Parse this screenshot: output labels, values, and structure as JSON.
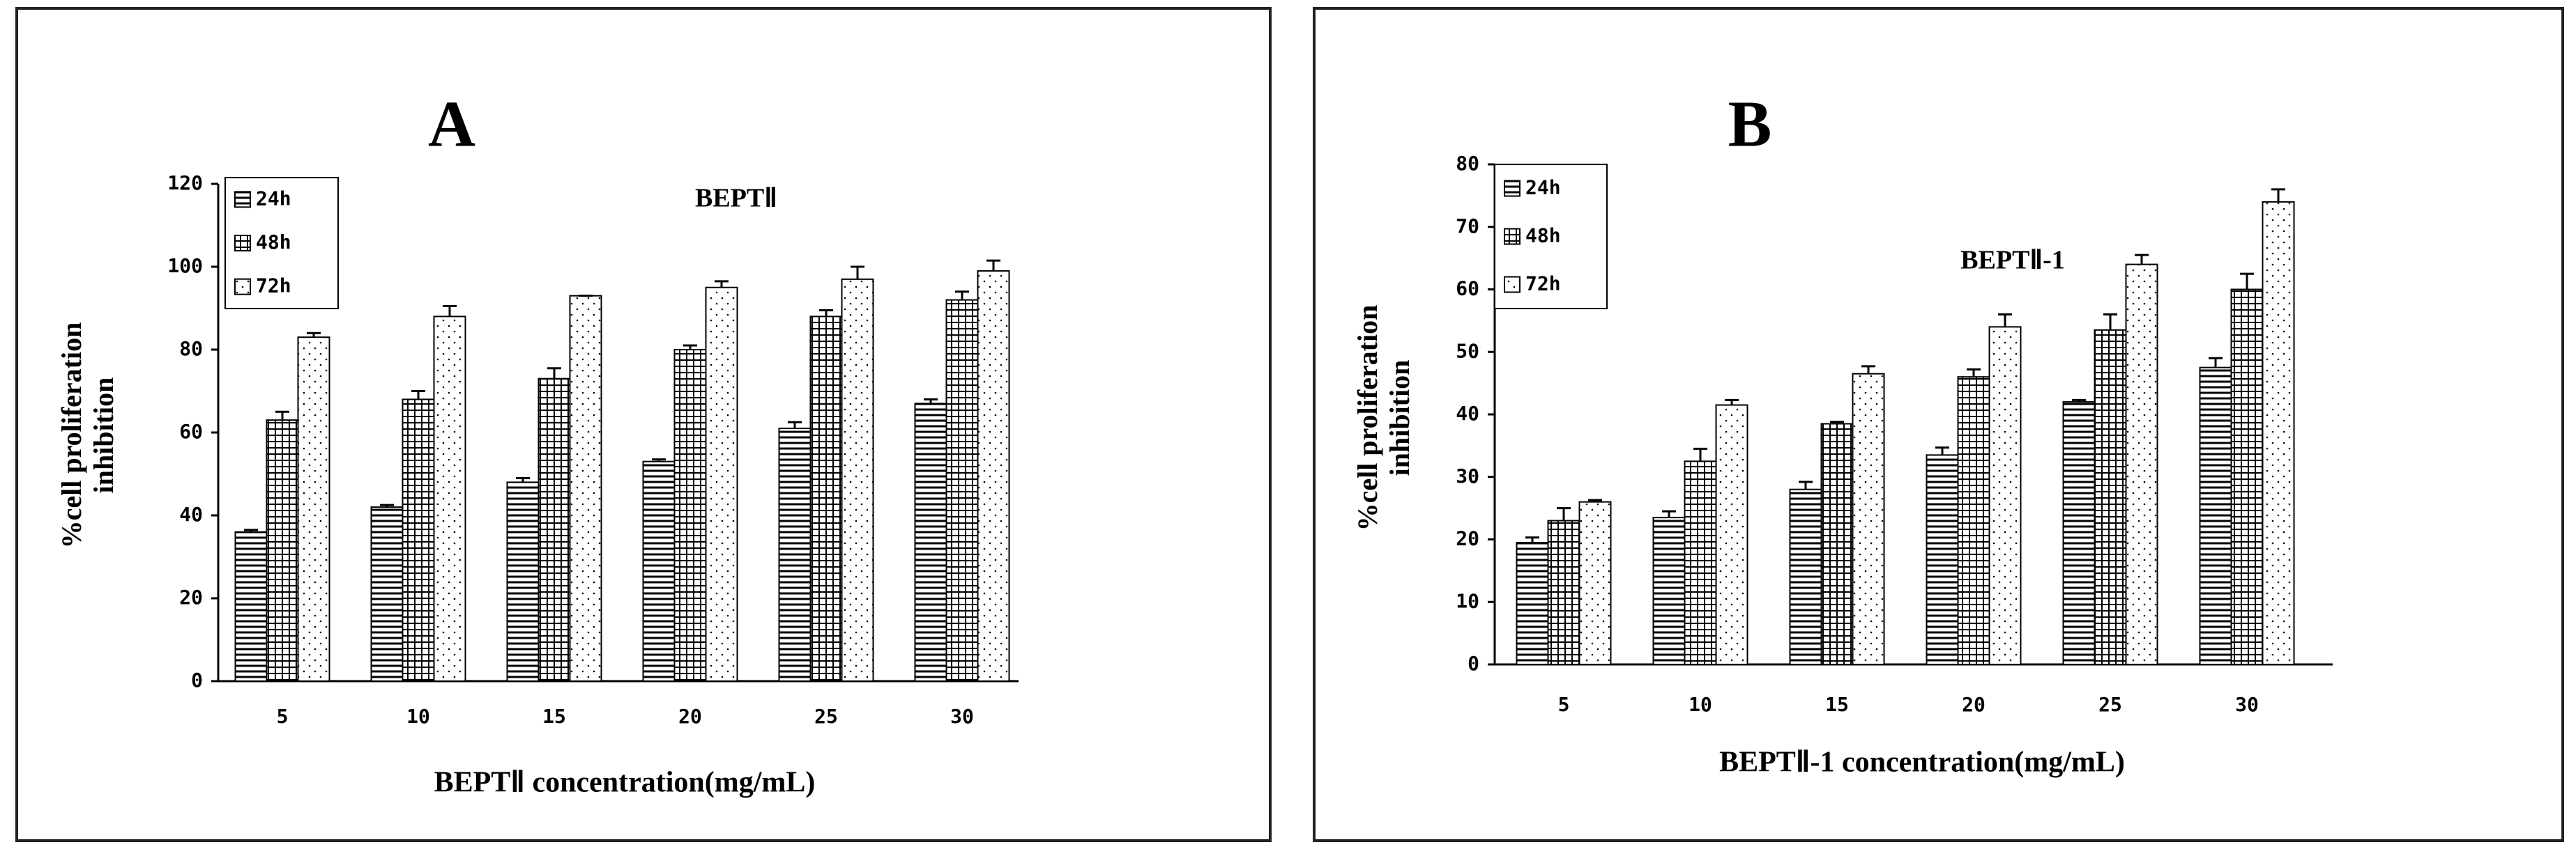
{
  "chart_data": [
    {
      "type": "bar",
      "title": "A",
      "subtitle": "BEPTⅡ",
      "x_label": "BEPTⅡ  concentration(mg/mL)",
      "y_label": [
        "%cell proliferation",
        "inhibition"
      ],
      "categories": [
        "5",
        "10",
        "15",
        "20",
        "25",
        "30"
      ],
      "series": [
        {
          "name": "24h",
          "values": [
            36,
            42,
            48,
            53,
            61,
            67
          ],
          "errors": [
            0.5,
            0.5,
            1,
            0.5,
            1.5,
            1
          ]
        },
        {
          "name": "48h",
          "values": [
            63,
            68,
            73,
            80,
            88,
            92
          ],
          "errors": [
            2,
            2,
            2.5,
            1,
            1.5,
            2
          ]
        },
        {
          "name": "72h",
          "values": [
            83,
            88,
            93,
            95,
            97,
            99
          ],
          "errors": [
            1,
            2.5,
            0,
            1.5,
            3,
            2.5
          ]
        }
      ],
      "ylim": [
        0,
        120
      ],
      "yticks": [
        0,
        20,
        40,
        60,
        80,
        100,
        120
      ]
    },
    {
      "type": "bar",
      "title": "B",
      "subtitle": "BEPTⅡ-1",
      "x_label": "BEPTⅡ-1 concentration(mg/mL)",
      "y_label": [
        "%cell proliferation",
        "inhibition"
      ],
      "categories": [
        "5",
        "10",
        "15",
        "20",
        "25",
        "30"
      ],
      "series": [
        {
          "name": "24h",
          "values": [
            19.5,
            23.5,
            28,
            33.5,
            42,
            47.5
          ],
          "errors": [
            0.8,
            1,
            1.2,
            1.2,
            0.3,
            1.5
          ]
        },
        {
          "name": "48h",
          "values": [
            23,
            32.5,
            38.5,
            46,
            53.5,
            60
          ],
          "errors": [
            2,
            2,
            0.3,
            1.2,
            2.5,
            2.5
          ]
        },
        {
          "name": "72h",
          "values": [
            26,
            41.5,
            46.5,
            54,
            64,
            74
          ],
          "errors": [
            0.3,
            0.8,
            1.2,
            2,
            1.5,
            2
          ]
        }
      ],
      "ylim": [
        0,
        80
      ],
      "yticks": [
        0,
        10,
        20,
        30,
        40,
        50,
        60,
        70,
        80
      ]
    }
  ]
}
